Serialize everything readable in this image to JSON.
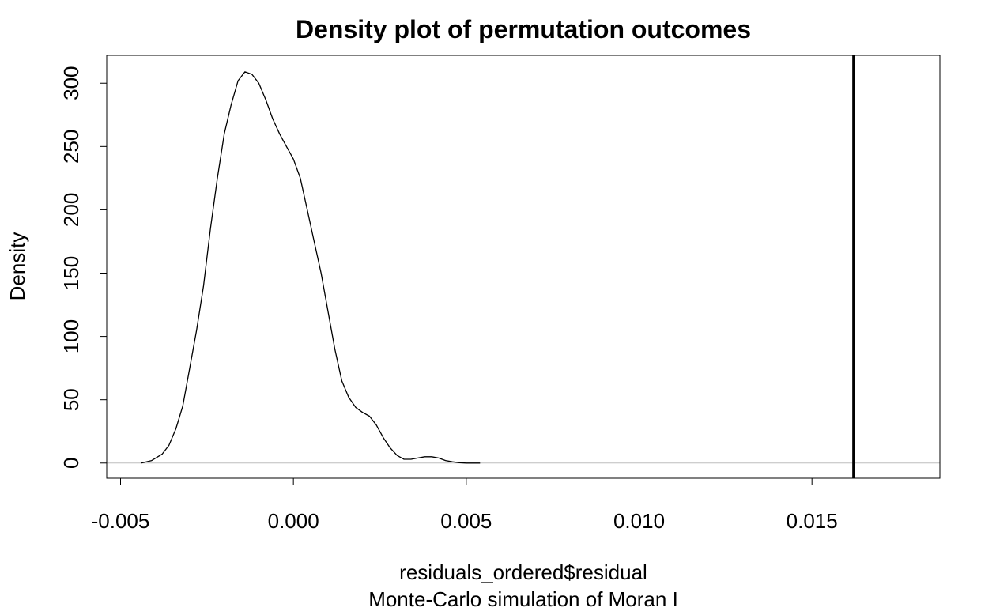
{
  "chart_data": {
    "type": "line",
    "title": "Density plot of permutation outcomes",
    "xlabel": "residuals_ordered$residual",
    "sublabel": "Monte-Carlo simulation of Moran I",
    "ylabel": "Density",
    "xlim": [
      -0.0054,
      0.0187
    ],
    "ylim": [
      -12,
      322
    ],
    "x_ticks": [
      -0.005,
      0.0,
      0.005,
      0.01,
      0.015
    ],
    "x_tick_labels": [
      "-0.005",
      "0.000",
      "0.005",
      "0.010",
      "0.015"
    ],
    "y_ticks": [
      0,
      50,
      100,
      150,
      200,
      250,
      300
    ],
    "y_tick_labels": [
      "0",
      "50",
      "100",
      "150",
      "200",
      "250",
      "300"
    ],
    "grid": false,
    "legend": "none",
    "baseline": {
      "y": 0,
      "color": "#bebebe"
    },
    "observed_line": {
      "x": 0.0162,
      "color": "#000000"
    },
    "series": [
      {
        "color": "#000000",
        "x": [
          -0.0044,
          -0.0041,
          -0.0038,
          -0.0036,
          -0.0034,
          -0.0032,
          -0.003,
          -0.0028,
          -0.0026,
          -0.0024,
          -0.0022,
          -0.002,
          -0.0018,
          -0.0016,
          -0.0014,
          -0.0012,
          -0.001,
          -0.0008,
          -0.0006,
          -0.0004,
          -0.0003,
          -0.0002,
          0.0,
          0.0002,
          0.0004,
          0.0006,
          0.0008,
          0.001,
          0.0012,
          0.0014,
          0.0016,
          0.0018,
          0.002,
          0.0022,
          0.0024,
          0.0026,
          0.0028,
          0.003,
          0.0032,
          0.0034,
          0.0036,
          0.0038,
          0.004,
          0.0042,
          0.0044,
          0.0046,
          0.0048,
          0.005,
          0.0052,
          0.0054
        ],
        "y": [
          0,
          2,
          7,
          14,
          27,
          45,
          75,
          105,
          140,
          185,
          225,
          260,
          283,
          302,
          309,
          307,
          300,
          287,
          272,
          260,
          255,
          250,
          240,
          225,
          200,
          175,
          150,
          120,
          90,
          65,
          52,
          44,
          40,
          37,
          30,
          20,
          12,
          6,
          3,
          3,
          4,
          5,
          5,
          4,
          2,
          1,
          0.3,
          0,
          0,
          0
        ]
      }
    ]
  }
}
